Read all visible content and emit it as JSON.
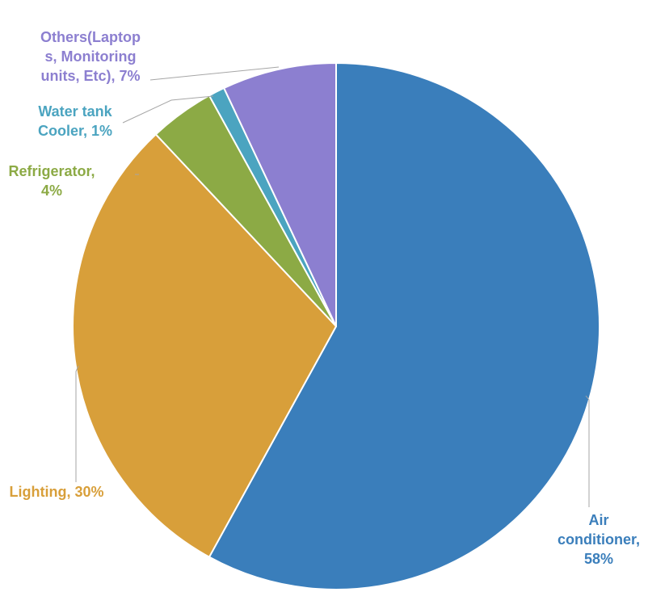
{
  "chart_data": {
    "type": "pie",
    "title": "",
    "slices": [
      {
        "label": "Air conditioner",
        "value": 58,
        "display": "58%",
        "color": "#3A7EBB",
        "label_lines": [
          "Air",
          "conditioner,",
          "58%"
        ]
      },
      {
        "label": "Lighting",
        "value": 30,
        "display": "30%",
        "color": "#D89F3A",
        "label_lines": [
          "Lighting, 30%"
        ]
      },
      {
        "label": "Refrigerator",
        "value": 4,
        "display": "4%",
        "color": "#8CAA45",
        "label_lines": [
          "Refrigerator,",
          "4%"
        ]
      },
      {
        "label": "Water tank Cooler",
        "value": 1,
        "display": "1%",
        "color": "#4BA4C0",
        "label_lines": [
          "Water tank",
          "Cooler, 1%"
        ]
      },
      {
        "label": "Others(Laptops, Monitoring units, Etc)",
        "value": 7,
        "display": "7%",
        "color": "#8C7FD0",
        "label_lines": [
          "Others(Laptop",
          "s, Monitoring",
          "units, Etc), 7%"
        ]
      }
    ],
    "legend": "none",
    "data_labels": "outside-with-leader-lines"
  }
}
